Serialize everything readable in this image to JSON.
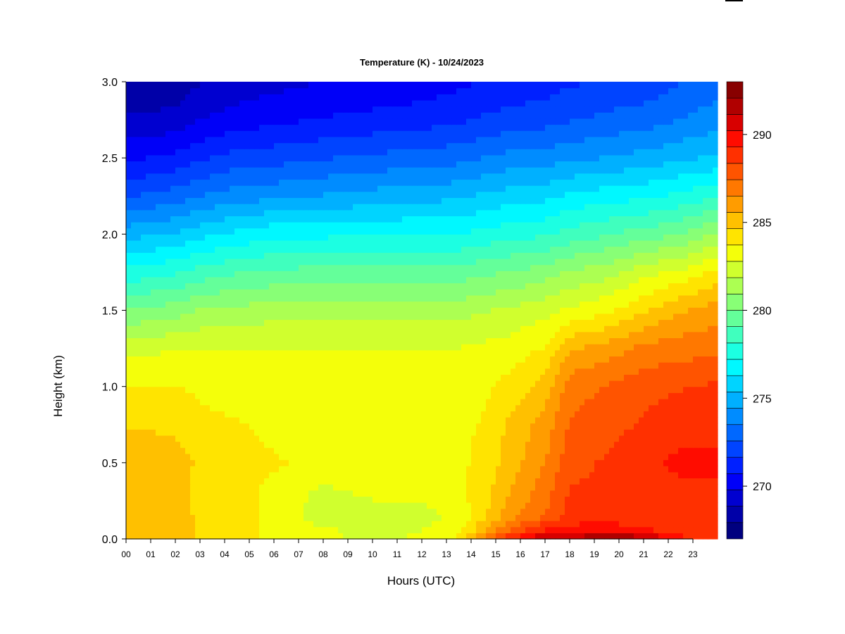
{
  "chart_data": {
    "type": "heatmap",
    "title": "Temperature (K) - 10/24/2023",
    "xlabel": "Hours (UTC)",
    "ylabel": "Height (km)",
    "xlim": [
      0,
      24
    ],
    "ylim": [
      0,
      3
    ],
    "x_ticks": [
      "00",
      "01",
      "02",
      "03",
      "04",
      "05",
      "06",
      "07",
      "08",
      "09",
      "10",
      "11",
      "12",
      "13",
      "14",
      "15",
      "16",
      "17",
      "18",
      "19",
      "20",
      "21",
      "22",
      "23"
    ],
    "y_ticks": [
      "0.0",
      "0.5",
      "1.0",
      "1.5",
      "2.0",
      "2.5",
      "3.0"
    ],
    "y_tick_values": [
      0,
      0.5,
      1.0,
      1.5,
      2.0,
      2.5,
      3.0
    ],
    "colorbar": {
      "range": [
        267,
        293
      ],
      "ticks": [
        270,
        275,
        280,
        285,
        290
      ],
      "tick_labels": [
        "270",
        "275",
        "280",
        "285",
        "290"
      ],
      "levels": [
        "#00007f",
        "#0000a8",
        "#0000d0",
        "#0000f8",
        "#0020ff",
        "#0044ff",
        "#0068ff",
        "#008cff",
        "#00b0ff",
        "#00d4ff",
        "#00f8ff",
        "#1cffe2",
        "#40ffbe",
        "#64ff9a",
        "#88ff76",
        "#acff52",
        "#d0ff2e",
        "#f4ff0a",
        "#ffe400",
        "#ffc000",
        "#ff9c00",
        "#ff7800",
        "#ff5400",
        "#ff3000",
        "#ff0c00",
        "#d80000",
        "#b00000",
        "#880000"
      ]
    },
    "x": [
      0,
      2,
      3,
      4.5,
      6,
      8,
      10,
      12,
      13.5,
      14.5,
      15.5,
      17,
      18,
      19.5,
      21,
      22.5,
      23.9
    ],
    "y": [
      0,
      0.05,
      0.15,
      0.3,
      0.5,
      0.75,
      1.0,
      1.25,
      1.5,
      1.75,
      2.0,
      2.25,
      2.5,
      2.75,
      3.0
    ],
    "z": [
      [
        285.0,
        285.0,
        284.5,
        284.0,
        283.5,
        283.0,
        282.5,
        283.0,
        284.0,
        287.0,
        289.0,
        291.5,
        291.5,
        292.5,
        292.0,
        289.5,
        289.0
      ],
      [
        285.0,
        285.0,
        284.5,
        284.0,
        283.5,
        283.0,
        282.5,
        282.8,
        283.5,
        285.5,
        287.5,
        289.5,
        290.0,
        290.0,
        289.5,
        289.0,
        288.5
      ],
      [
        285.0,
        285.0,
        284.5,
        284.0,
        283.5,
        282.2,
        282.2,
        282.5,
        283.0,
        284.5,
        286.0,
        287.5,
        288.5,
        288.8,
        288.5,
        288.5,
        288.5
      ],
      [
        285.0,
        285.0,
        284.3,
        284.0,
        283.5,
        282.5,
        283.0,
        283.0,
        283.5,
        284.2,
        285.5,
        287.0,
        288.5,
        288.5,
        289.0,
        289.0,
        289.0
      ],
      [
        285.2,
        285.0,
        284.5,
        284.0,
        283.8,
        283.5,
        283.5,
        283.5,
        283.5,
        284.0,
        285.0,
        286.5,
        288.0,
        288.5,
        289.0,
        289.5,
        289.5
      ],
      [
        284.6,
        284.5,
        284.0,
        283.8,
        283.5,
        283.5,
        283.5,
        283.5,
        283.5,
        283.8,
        284.8,
        286.0,
        287.5,
        288.0,
        288.5,
        289.0,
        289.0
      ],
      [
        283.8,
        283.8,
        283.5,
        283.3,
        283.2,
        283.2,
        283.2,
        283.2,
        283.2,
        283.5,
        284.0,
        285.0,
        287.0,
        287.5,
        288.0,
        288.3,
        288.5
      ],
      [
        282.5,
        282.7,
        282.8,
        282.8,
        282.8,
        282.8,
        282.8,
        282.8,
        282.8,
        283.0,
        283.2,
        283.8,
        285.5,
        286.0,
        286.8,
        287.0,
        287.2
      ],
      [
        280.0,
        280.5,
        281.0,
        281.2,
        281.5,
        281.5,
        281.5,
        281.5,
        281.5,
        281.8,
        282.0,
        282.5,
        283.0,
        283.5,
        284.5,
        285.5,
        286.0
      ],
      [
        277.5,
        278.0,
        278.5,
        279.0,
        279.2,
        279.5,
        279.5,
        279.5,
        279.5,
        279.8,
        280.0,
        280.5,
        281.0,
        281.5,
        282.5,
        283.0,
        284.0
      ],
      [
        275.0,
        275.5,
        276.0,
        276.5,
        277.0,
        277.0,
        277.2,
        277.2,
        277.2,
        277.5,
        277.8,
        278.0,
        278.5,
        279.0,
        279.5,
        280.0,
        281.0
      ],
      [
        272.5,
        273.0,
        273.5,
        274.0,
        274.2,
        274.5,
        274.8,
        275.0,
        275.2,
        275.5,
        275.8,
        276.0,
        276.5,
        276.8,
        277.0,
        277.5,
        278.0
      ],
      [
        270.5,
        271.0,
        271.5,
        272.0,
        272.2,
        272.5,
        272.8,
        273.0,
        273.2,
        273.5,
        273.8,
        274.0,
        274.2,
        274.5,
        274.8,
        275.2,
        275.5
      ],
      [
        269.0,
        269.2,
        269.8,
        270.2,
        270.5,
        270.8,
        271.0,
        271.2,
        271.5,
        271.8,
        272.0,
        272.2,
        272.5,
        272.8,
        273.0,
        273.5,
        274.0
      ],
      [
        268.0,
        268.2,
        268.8,
        269.2,
        269.5,
        269.8,
        270.0,
        270.2,
        270.5,
        270.8,
        271.0,
        271.2,
        271.5,
        271.8,
        272.0,
        272.5,
        273.0
      ]
    ]
  }
}
